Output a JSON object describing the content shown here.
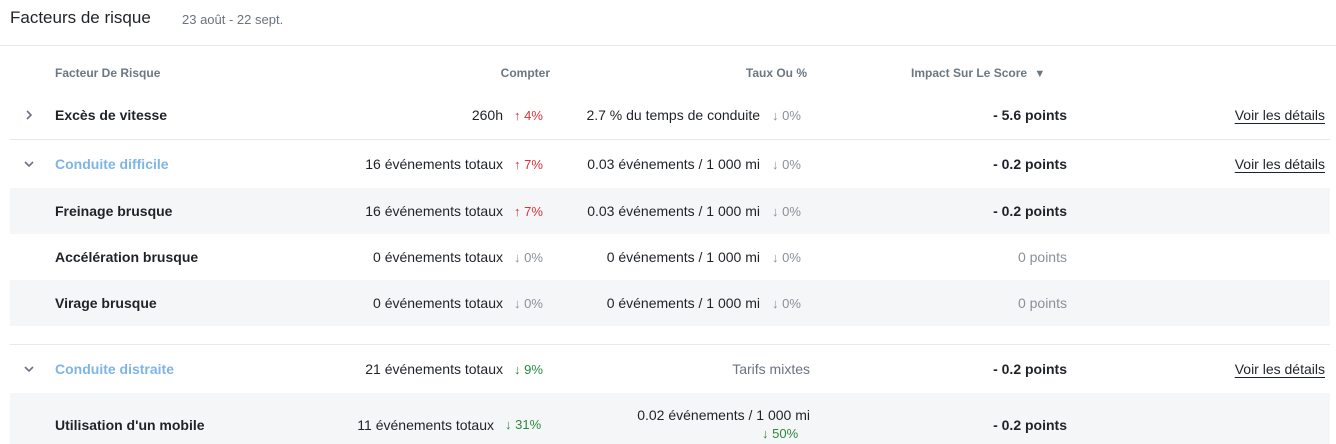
{
  "header": {
    "title": "Facteurs de risque",
    "date_range": "23 août - 22 sept."
  },
  "columns": {
    "factor": "Facteur De Risque",
    "count": "Compter",
    "rate": "Taux Ou %",
    "impact": "Impact Sur Le Score",
    "sort_icon": "sort-desc-icon"
  },
  "colors": {
    "up": "#d6333b",
    "down_good": "#2a8a3e",
    "neutral": "#8a9099",
    "link": "#7fb5e6"
  },
  "rows": [
    {
      "label": "Excès de vitesse",
      "count": "260h",
      "count_pct": "4%",
      "count_trend": "up",
      "rate": "2.7 % du temps de conduite",
      "rate_pct": "0%",
      "rate_trend": "down",
      "impact": "- 5.6 points",
      "details": "Voir les détails",
      "expand": "collapsed"
    },
    {
      "label": "Conduite difficile",
      "count": "16 événements totaux",
      "count_pct": "7%",
      "count_trend": "up",
      "rate": "0.03 événements / 1 000 mi",
      "rate_pct": "0%",
      "rate_trend": "down",
      "impact": "- 0.2 points",
      "details": "Voir les détails",
      "expand": "expanded"
    },
    {
      "label": "Freinage brusque",
      "count": "16 événements totaux",
      "count_pct": "7%",
      "count_trend": "up",
      "rate": "0.03 événements / 1 000 mi",
      "rate_pct": "0%",
      "rate_trend": "down",
      "impact": "- 0.2 points"
    },
    {
      "label": "Accélération brusque",
      "count": "0 événements totaux",
      "count_pct": "0%",
      "count_trend": "down",
      "rate": "0 événements / 1 000 mi",
      "rate_pct": "0%",
      "rate_trend": "down",
      "impact": "0 points"
    },
    {
      "label": "Virage brusque",
      "count": "0 événements totaux",
      "count_pct": "0%",
      "count_trend": "down",
      "rate": "0 événements / 1 000 mi",
      "rate_pct": "0%",
      "rate_trend": "down",
      "impact": "0 points"
    },
    {
      "label": "Conduite distraite",
      "count": "21 événements totaux",
      "count_pct": "9%",
      "count_trend": "down-good",
      "rate": "Tarifs mixtes",
      "impact": "- 0.2 points",
      "details": "Voir les détails",
      "expand": "expanded"
    },
    {
      "label": "Utilisation d'un mobile",
      "count": "11 événements totaux",
      "count_pct": "31%",
      "count_trend": "down-good",
      "rate": "0.02 événements / 1 000 mi",
      "rate_pct": "50%",
      "rate_trend": "down-good",
      "impact": "- 0.2 points"
    }
  ]
}
